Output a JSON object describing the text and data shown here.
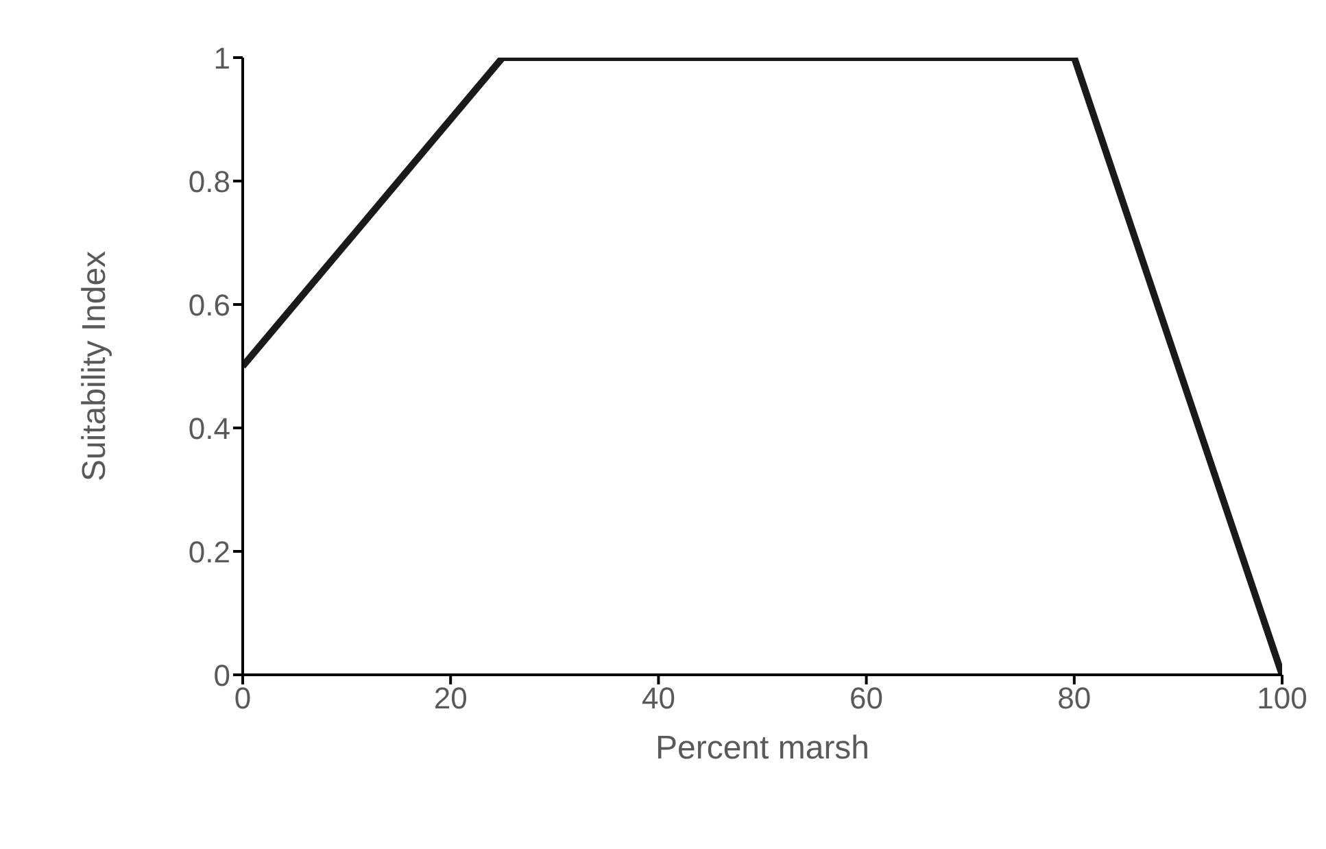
{
  "chart_data": {
    "type": "line",
    "xlabel": "Percent marsh",
    "ylabel": "Suitability Index",
    "x": [
      0,
      25,
      80,
      100
    ],
    "series": [
      {
        "color": "#1a1a1a",
        "values": [
          0.5,
          1,
          1,
          0
        ]
      }
    ],
    "xlim": [
      0,
      100
    ],
    "xticks": [
      0,
      20,
      40,
      60,
      80,
      100
    ],
    "ylim": [
      0,
      1
    ],
    "yticks": [
      0,
      0.2,
      0.4,
      0.6,
      0.8,
      1
    ],
    "grid": false,
    "legend": false,
    "marker": "none",
    "line_style": "solid"
  }
}
